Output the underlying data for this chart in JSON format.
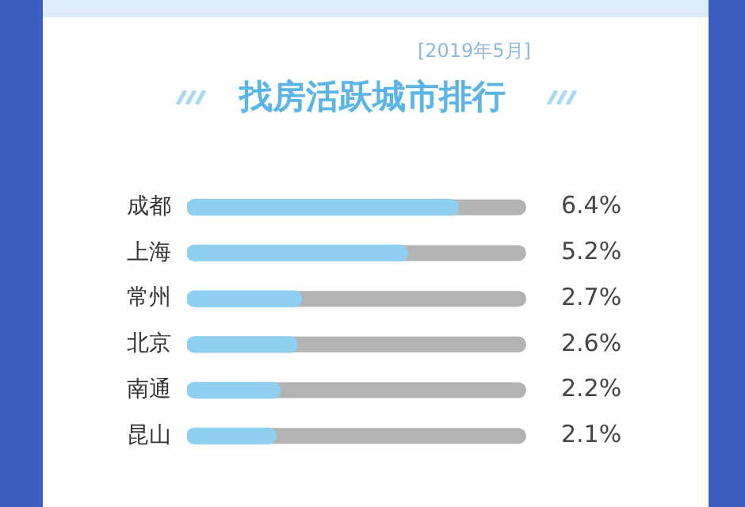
{
  "chart_data": {
    "type": "bar",
    "orientation": "horizontal",
    "title": "找房活跃城市排行",
    "subtitle": "[2019年5月]",
    "categories": [
      "成都",
      "上海",
      "常州",
      "北京",
      "南通",
      "昆山"
    ],
    "values": [
      6.4,
      5.2,
      2.7,
      2.6,
      2.2,
      2.1
    ],
    "value_labels": [
      "6.4%",
      "5.2%",
      "2.7%",
      "2.6%",
      "2.2%",
      "2.1%"
    ],
    "color": "#8fd0f0",
    "grid": false,
    "legend": false,
    "tick_labels": "y"
  }
}
